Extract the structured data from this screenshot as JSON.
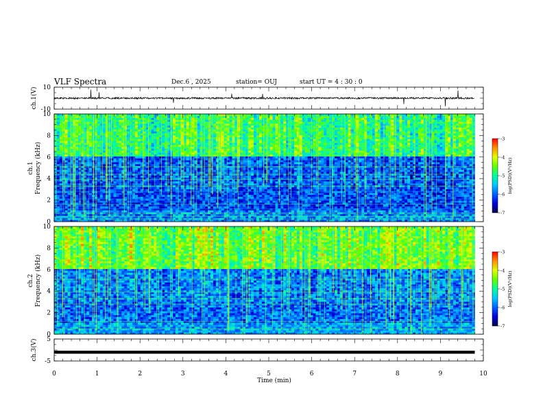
{
  "header": {
    "title": "VLF Spectra",
    "date": "Dec.6  , 2025",
    "station": "station= OUJ",
    "start": "start  UT =   4  : 30 : 0"
  },
  "chart_data": [
    {
      "type": "line",
      "panel": "ch1-waveform",
      "ylabel": "ch.1(V)",
      "ylim": [
        -10,
        10
      ],
      "yticks": [
        "10",
        "-10"
      ],
      "baseline": 0,
      "series_color": "#000000"
    },
    {
      "type": "heatmap",
      "panel": "ch1-spectrogram",
      "ylabel": "ch.1\nFrequency  (kHz)",
      "ylim": [
        0,
        10
      ],
      "yticks": [
        "0",
        "2",
        "4",
        "6",
        "8",
        "10"
      ],
      "colorbar": {
        "label": "log(PSD)(V²/Hz)",
        "range": [
          -7,
          -3
        ],
        "ticks": [
          "-3",
          "-4",
          "-5",
          "-6",
          "-7"
        ]
      }
    },
    {
      "type": "heatmap",
      "panel": "ch2-spectrogram",
      "ylabel": "ch.2\nFrequency  (kHz)",
      "ylim": [
        0,
        10
      ],
      "yticks": [
        "0",
        "2",
        "4",
        "6",
        "8",
        "10"
      ],
      "colorbar": {
        "label": "log(PSD)(V²/Hz)",
        "range": [
          -7,
          -3
        ],
        "ticks": [
          "-3",
          "-4",
          "-5",
          "-6",
          "-7"
        ]
      }
    },
    {
      "type": "line",
      "panel": "ch3-waveform",
      "ylabel": "ch.3(V)",
      "ylim": [
        -5,
        5
      ],
      "yticks": [
        "5",
        "-5"
      ],
      "baseline": -1,
      "series_color": "#000000"
    }
  ],
  "xaxis": {
    "label": "Time  (min)",
    "xlim": [
      0,
      10
    ],
    "ticks": [
      "0",
      "1",
      "2",
      "3",
      "4",
      "5",
      "6",
      "7",
      "8",
      "9",
      "10"
    ],
    "data_end": 9.8
  },
  "colormap": [
    "#000050",
    "#0000d8",
    "#0060ff",
    "#00c8ff",
    "#00ffa0",
    "#60ff00",
    "#e0ff00",
    "#ff9000",
    "#ff0000",
    "#ffffff"
  ]
}
